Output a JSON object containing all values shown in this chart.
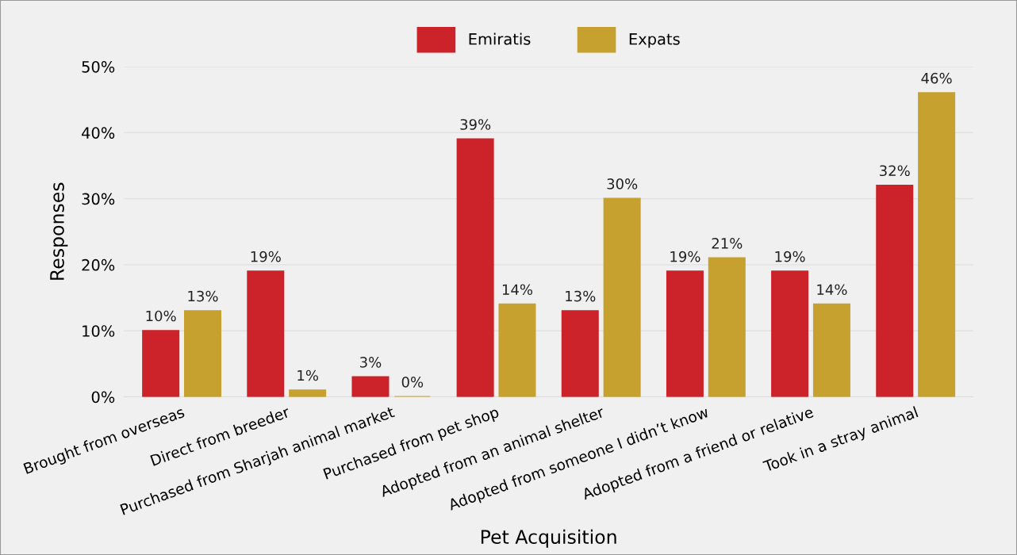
{
  "chart_data": {
    "type": "bar",
    "xlabel": "Pet Acquisition",
    "ylabel": "Responses",
    "categories": [
      "Brought from overseas",
      "Direct from breeder",
      "Purchased from Sharjah animal market",
      "Purchased from pet shop",
      "Adopted from an animal shelter",
      "Adopted from someone I didn’t know",
      "Adopted from a friend or relative",
      "Took in a stray animal"
    ],
    "series": [
      {
        "name": "Emiratis",
        "color": "#cc2229",
        "values": [
          10,
          19,
          3,
          39,
          13,
          19,
          19,
          32
        ],
        "value_labels": [
          "10%",
          "19%",
          "3%",
          "39%",
          "13%",
          "19%",
          "19%",
          "32%"
        ]
      },
      {
        "name": "Expats",
        "color": "#c6a12f",
        "values": [
          13,
          1,
          0,
          14,
          30,
          21,
          14,
          46
        ],
        "value_labels": [
          "13%",
          "1%",
          "0%",
          "14%",
          "30%",
          "21%",
          "14%",
          "46%"
        ]
      }
    ],
    "ylim": [
      0,
      50
    ],
    "yticks": [
      {
        "value": 0,
        "label": "0%"
      },
      {
        "value": 10,
        "label": "10%"
      },
      {
        "value": 20,
        "label": "20%"
      },
      {
        "value": 30,
        "label": "30%"
      },
      {
        "value": 40,
        "label": "40%"
      },
      {
        "value": 50,
        "label": "50%"
      }
    ],
    "grid": "y",
    "legend": "top"
  }
}
